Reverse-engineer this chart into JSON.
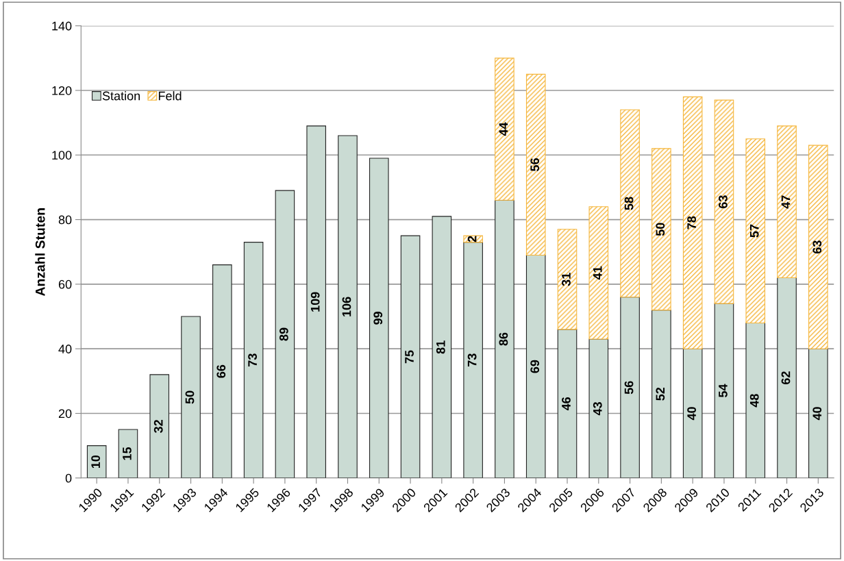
{
  "chart_data": {
    "type": "bar",
    "stacked": true,
    "ylabel": "Anzahl Stuten",
    "categories": [
      "1990",
      "1991",
      "1992",
      "1993",
      "1994",
      "1995",
      "1996",
      "1997",
      "1998",
      "1999",
      "2000",
      "2001",
      "2002",
      "2003",
      "2004",
      "2005",
      "2006",
      "2007",
      "2008",
      "2009",
      "2010",
      "2011",
      "2012",
      "2013"
    ],
    "series": [
      {
        "name": "Station",
        "color": "#cadbd3",
        "values": [
          10,
          15,
          32,
          50,
          66,
          73,
          89,
          109,
          106,
          99,
          75,
          81,
          73,
          86,
          69,
          46,
          43,
          56,
          52,
          40,
          54,
          48,
          62,
          40
        ]
      },
      {
        "name": "Feld",
        "color": "#f5b63c",
        "values": [
          null,
          null,
          null,
          null,
          null,
          null,
          null,
          null,
          null,
          null,
          null,
          null,
          2,
          44,
          56,
          31,
          41,
          58,
          50,
          78,
          63,
          57,
          47,
          63
        ]
      }
    ],
    "ylim": [
      0,
      140
    ],
    "yticks": [
      0,
      20,
      40,
      60,
      80,
      100,
      120,
      140
    ],
    "grid": "y",
    "legend": "top left",
    "data_labels": true
  }
}
